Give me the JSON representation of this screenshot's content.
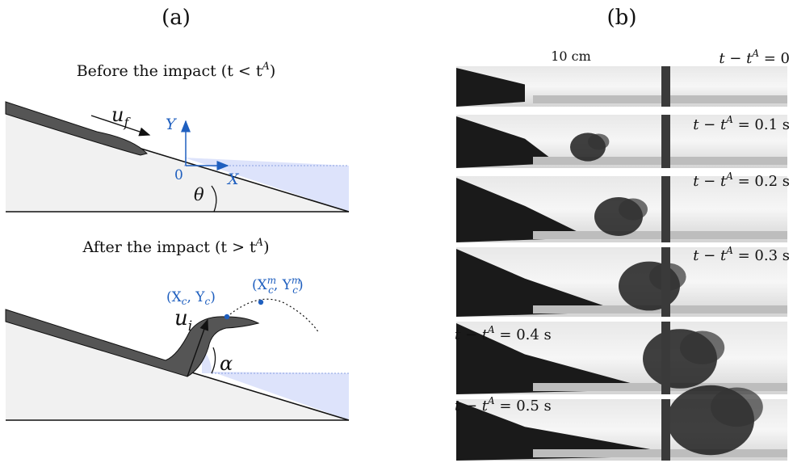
{
  "panel_a": {
    "label": "(a)",
    "before": {
      "title": "Before the impact (t < t",
      "title_sup": "A",
      "title_close": ")",
      "flow_u": "u",
      "flow_sub": "f",
      "axis_y": "Y",
      "axis_x": "X",
      "origin": "0",
      "angle": "θ"
    },
    "after": {
      "title": "After the impact (t > t",
      "title_sup": "A",
      "title_close": ")",
      "impact_u": "u",
      "impact_sub": "i",
      "angle": "α",
      "point1": "(X",
      "point1_sub": "c",
      "point1_mid": ", Y",
      "point1_sub2": "c",
      "point1_close": ")",
      "point2": "(X",
      "point2_sup": "m",
      "point2_sub": "c",
      "point2_mid": ", Y",
      "point2_sup2": "m",
      "point2_sub2": "c",
      "point2_close": ")"
    }
  },
  "panel_b": {
    "label": "(b)",
    "scale_bar": "10 cm",
    "frames": [
      {
        "pre": "t − t",
        "sup": "A",
        "post": " = 0"
      },
      {
        "pre": "t − t",
        "sup": "A",
        "post": " = 0.1 s"
      },
      {
        "pre": "t − t",
        "sup": "A",
        "post": " = 0.2 s"
      },
      {
        "pre": "t − t",
        "sup": "A",
        "post": " = 0.3 s"
      },
      {
        "pre": "t − t",
        "sup": "A",
        "post": " = 0.4 s"
      },
      {
        "pre": "t − t",
        "sup": "A",
        "post": " = 0.5 s"
      }
    ]
  },
  "colors": {
    "slope_fill": "#f1f1f1",
    "water": "#dde3fb",
    "flow": "#555555",
    "accent": "#1f5fbf"
  }
}
